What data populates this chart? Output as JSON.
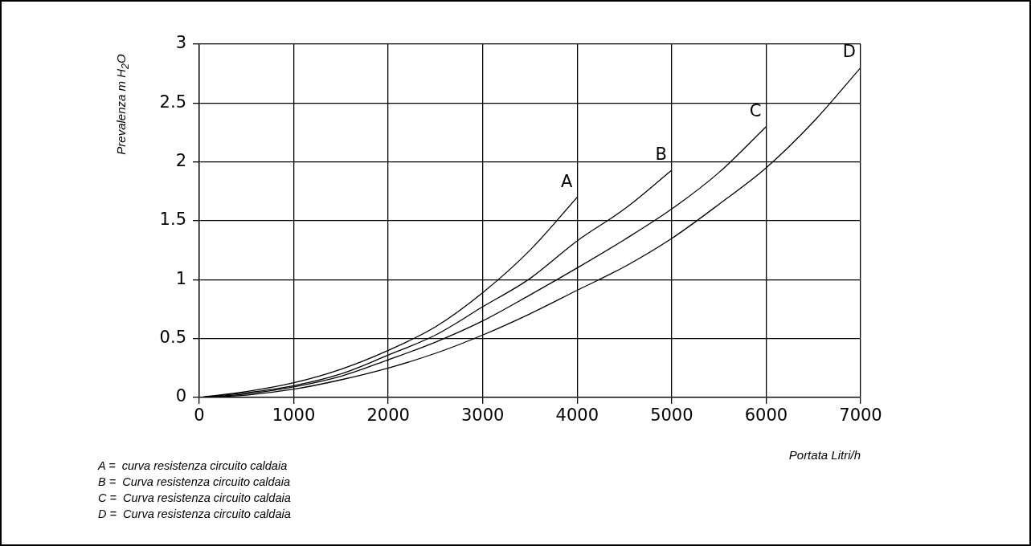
{
  "chart_data": {
    "type": "line",
    "xlabel": "Portata Litri/h",
    "ylabel": "Prevalenza m H$_{2}$O",
    "xlim": [
      0,
      7000
    ],
    "xticks": [
      0,
      1000,
      2000,
      3000,
      4000,
      5000,
      6000,
      7000
    ],
    "ylim": [
      0,
      3
    ],
    "yticks": [
      0,
      0.5,
      1,
      1.5,
      2,
      2.5,
      3
    ],
    "grid": true,
    "legend": false,
    "marker": "none",
    "line_style": "solid",
    "series": [
      {
        "name": "A",
        "color": "#000000",
        "x": [
          0,
          500,
          1000,
          1500,
          2000,
          2500,
          3000,
          3500,
          4000
        ],
        "values": [
          0,
          0.05,
          0.125,
          0.24,
          0.4,
          0.6,
          0.89,
          1.25,
          1.7
        ]
      },
      {
        "name": "B",
        "color": "#000000",
        "x": [
          0,
          500,
          1000,
          1500,
          2000,
          2500,
          3000,
          3500,
          4000,
          4500,
          5000
        ],
        "values": [
          0,
          0.04,
          0.1,
          0.2,
          0.36,
          0.53,
          0.77,
          1.01,
          1.33,
          1.6,
          1.93
        ]
      },
      {
        "name": "C",
        "color": "#000000",
        "x": [
          0,
          500,
          1000,
          1500,
          2000,
          2500,
          3000,
          3500,
          4000,
          4500,
          5000,
          5500,
          6000
        ],
        "values": [
          0,
          0.03,
          0.09,
          0.18,
          0.32,
          0.47,
          0.65,
          0.87,
          1.1,
          1.34,
          1.6,
          1.91,
          2.3
        ]
      },
      {
        "name": "D",
        "color": "#000000",
        "x": [
          0,
          500,
          1000,
          1500,
          2000,
          2500,
          3000,
          3500,
          4000,
          4500,
          5000,
          5500,
          6000,
          6500,
          7000
        ],
        "values": [
          0,
          0.02,
          0.07,
          0.15,
          0.25,
          0.375,
          0.53,
          0.71,
          0.91,
          1.11,
          1.35,
          1.64,
          1.95,
          2.34,
          2.8
        ]
      }
    ],
    "annotations": [
      "A =  curva resistenza circuito caldaia",
      "B =  Curva resistenza circuito caldaia",
      "C =  Curva resistenza circuito caldaia",
      "D =  Curva resistenza circuito caldaia"
    ]
  }
}
